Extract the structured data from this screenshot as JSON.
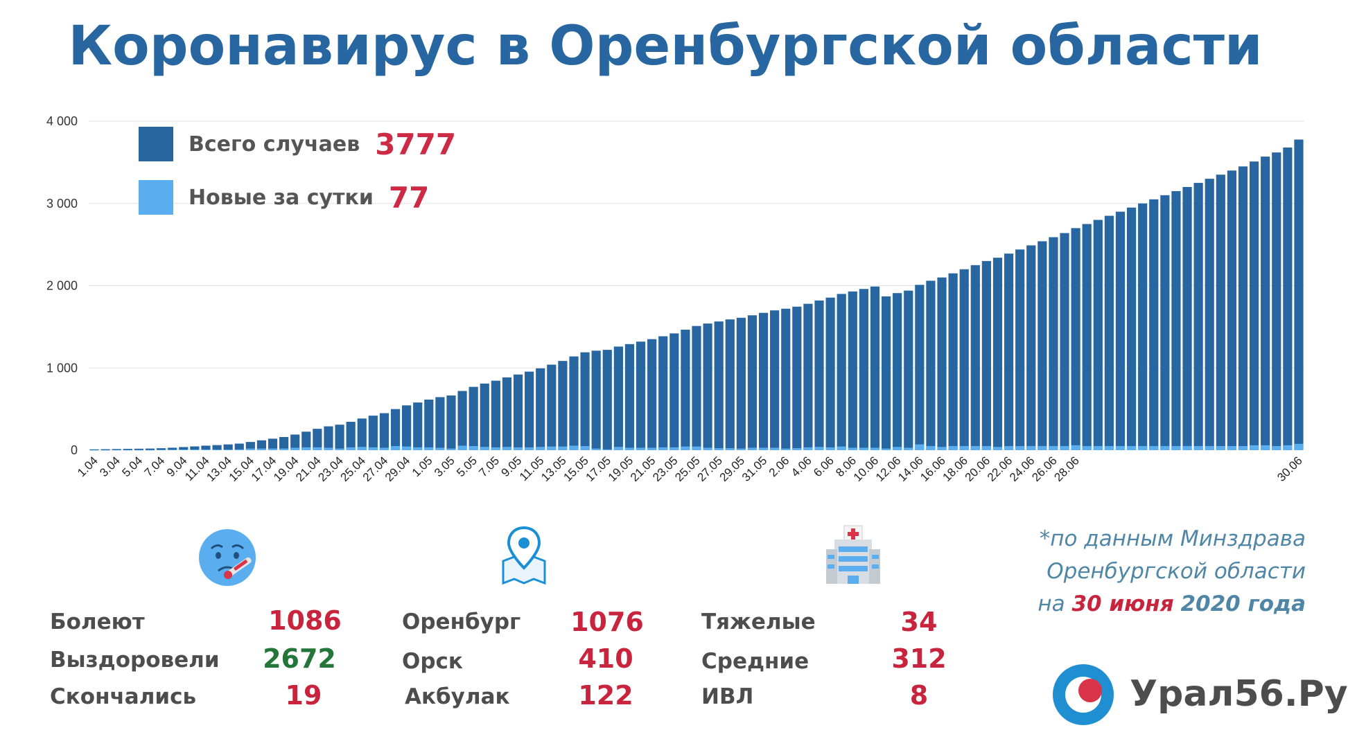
{
  "title": "Коронавирус в Оренбургской области",
  "colors": {
    "title": "#2766a0",
    "total_bar": "#2766a0",
    "new_bar": "#5aaef0",
    "highlight_red": "#c8243d",
    "highlight_green": "#23753a",
    "label_gray": "#4d4d4d",
    "source_blue": "#4f86a6"
  },
  "legend": [
    {
      "label": "Всего случаев",
      "value": "3777",
      "color": "#2766a0"
    },
    {
      "label": "Новые за сутки",
      "value": "77",
      "color": "#5aaef0"
    }
  ],
  "chart_data": {
    "type": "bar",
    "stacked_overlay": true,
    "ylim": [
      0,
      4000
    ],
    "y_ticks": [
      "0",
      "1 000",
      "2 000",
      "3 000",
      "4 000"
    ],
    "grid": true,
    "legend_position": "top-left",
    "x_tick_labels": [
      "1.04",
      "3.04",
      "5.04",
      "7.04",
      "9.04",
      "11.04",
      "13.04",
      "15.04",
      "17.04",
      "19.04",
      "21.04",
      "23.04",
      "25.04",
      "27.04",
      "29.04",
      "1.05",
      "3.05",
      "5.05",
      "7.05",
      "9.05",
      "11.05",
      "13.05",
      "15.05",
      "17.05",
      "19.05",
      "21.05",
      "23.05",
      "25.05",
      "27.05",
      "29.05",
      "31.05",
      "2.06",
      "4.06",
      "6.06",
      "8.06",
      "10.06",
      "12.06",
      "14.06",
      "16.06",
      "18.06",
      "20.06",
      "22.06",
      "24.06",
      "26.06",
      "28.06",
      "30.06"
    ],
    "series": [
      {
        "name": "Всего случаев",
        "values": [
          10,
          12,
          14,
          16,
          18,
          20,
          24,
          30,
          38,
          46,
          55,
          62,
          70,
          80,
          100,
          120,
          140,
          160,
          190,
          225,
          260,
          290,
          310,
          345,
          385,
          420,
          450,
          500,
          545,
          580,
          615,
          645,
          665,
          720,
          770,
          810,
          845,
          885,
          920,
          955,
          995,
          1040,
          1085,
          1140,
          1190,
          1210,
          1220,
          1260,
          1290,
          1320,
          1350,
          1385,
          1420,
          1465,
          1510,
          1540,
          1565,
          1590,
          1610,
          1640,
          1670,
          1700,
          1720,
          1745,
          1780,
          1820,
          1855,
          1900,
          1930,
          1960,
          1990,
          1870,
          1910,
          1940,
          2010,
          2060,
          2100,
          2150,
          2200,
          2250,
          2300,
          2340,
          2390,
          2440,
          2490,
          2540,
          2590,
          2640,
          2700,
          2750,
          2800,
          2850,
          2900,
          2950,
          3000,
          3050,
          3100,
          3150,
          3200,
          3250,
          3300,
          3350,
          3400,
          3450,
          3510,
          3570,
          3620,
          3680,
          3777
        ]
      },
      {
        "name": "Новые за сутки",
        "values": [
          1,
          1,
          2,
          2,
          2,
          2,
          4,
          6,
          8,
          8,
          9,
          7,
          8,
          10,
          20,
          20,
          20,
          20,
          30,
          35,
          35,
          30,
          20,
          35,
          40,
          35,
          30,
          50,
          45,
          35,
          35,
          30,
          20,
          55,
          50,
          40,
          35,
          40,
          35,
          35,
          40,
          45,
          45,
          55,
          50,
          20,
          10,
          40,
          30,
          30,
          30,
          35,
          35,
          45,
          45,
          30,
          25,
          25,
          20,
          30,
          30,
          30,
          20,
          25,
          35,
          40,
          35,
          45,
          30,
          30,
          30,
          20,
          40,
          30,
          70,
          50,
          40,
          50,
          50,
          50,
          50,
          40,
          50,
          50,
          50,
          50,
          50,
          50,
          60,
          50,
          50,
          50,
          50,
          50,
          50,
          50,
          50,
          50,
          50,
          50,
          50,
          50,
          50,
          50,
          60,
          60,
          50,
          60,
          77
        ]
      }
    ]
  },
  "stats": {
    "group1": [
      {
        "label": "Болеют",
        "value": "1086",
        "color": "red"
      },
      {
        "label": "Выздоровели",
        "value": "2672",
        "color": "green"
      },
      {
        "label": "Скончались",
        "value": "19",
        "color": "red"
      }
    ],
    "group2": [
      {
        "label": "Оренбург",
        "value": "1076",
        "color": "red"
      },
      {
        "label": "Орск",
        "value": "410",
        "color": "red"
      },
      {
        "label": "Акбулак",
        "value": "122",
        "color": "red"
      }
    ],
    "group3": [
      {
        "label": "Тяжелые",
        "value": "34",
        "color": "red"
      },
      {
        "label": "Средние",
        "value": "312",
        "color": "red"
      },
      {
        "label": "ИВЛ",
        "value": "8",
        "color": "red"
      }
    ]
  },
  "source": {
    "line1": "*по данным Минздрава",
    "line2": "Оренбургской области",
    "line3_prefix": "на",
    "date_red": "30 июня",
    "date_year": "2020 года"
  },
  "icons": {
    "sick": "sick-face-icon",
    "location": "map-pin-icon",
    "hospital": "hospital-icon",
    "logo": "ural56-logo"
  },
  "logo": {
    "text": "Урал56.Ру"
  }
}
